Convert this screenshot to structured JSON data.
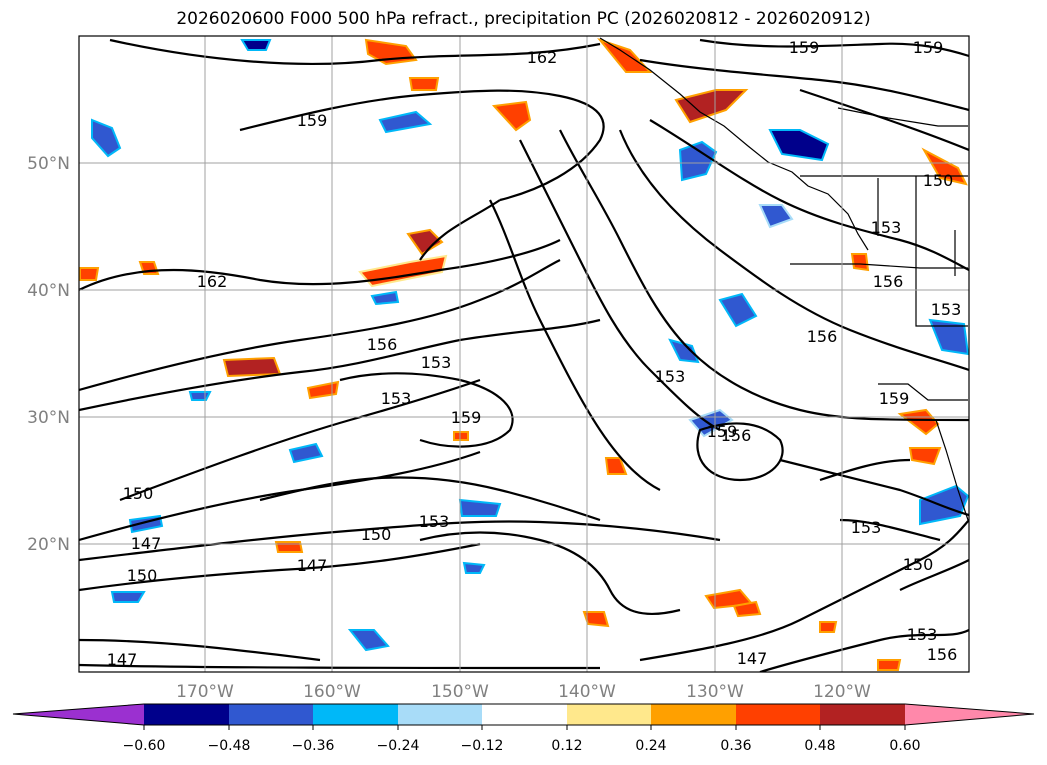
{
  "title": "2026020600 F000 500 hPa refract., precipitation PC (2026020812 - 2026020912)",
  "map": {
    "lat_labels": [
      "50°N",
      "40°N",
      "30°N",
      "20°N"
    ],
    "lon_labels": [
      "170°W",
      "160°W",
      "150°W",
      "140°W",
      "130°W",
      "120°W"
    ],
    "grid_color": "#a0a0a0",
    "contour_labels": [
      "162",
      "159",
      "159",
      "159",
      "150",
      "162",
      "156",
      "153",
      "153",
      "159",
      "153",
      "159",
      "156",
      "153",
      "156",
      "156",
      "153",
      "159",
      "150",
      "147",
      "150",
      "150",
      "153",
      "147",
      "147",
      "153",
      "150",
      "153",
      "147",
      "156"
    ]
  },
  "colorbar": {
    "ticks": [
      "−0.60",
      "−0.48",
      "−0.36",
      "−0.24",
      "−0.12",
      "0.12",
      "0.24",
      "0.36",
      "0.48",
      "0.60"
    ],
    "colors": [
      "#9b30d0",
      "#00008b",
      "#3058d0",
      "#00b8f8",
      "#a8dcf8",
      "#ffffff",
      "#ffe88c",
      "#ffa000",
      "#ff4000",
      "#b22222",
      "#ff88aa"
    ]
  }
}
